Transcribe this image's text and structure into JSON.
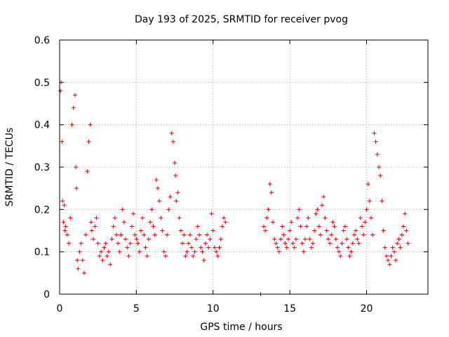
{
  "chart_data": {
    "type": "scatter",
    "title": "Day 193 of 2025, SRMTID for receiver pvog",
    "xlabel": "GPS time / hours",
    "ylabel": "SRMTID / TECUs",
    "xlim": [
      0,
      24
    ],
    "ylim": [
      0,
      0.6
    ],
    "xticks": [
      0,
      5,
      10,
      15,
      20
    ],
    "xtick_labels": [
      "0",
      "5",
      "10",
      "15",
      "20"
    ],
    "yticks": [
      0,
      0.1,
      0.2,
      0.3,
      0.4,
      0.5,
      0.6
    ],
    "ytick_labels": [
      "0",
      "0.1",
      "0.2",
      "0.3",
      "0.4",
      "0.5",
      "0.6"
    ],
    "grid": true,
    "marker": "+",
    "color": "#e00000",
    "series": [
      {
        "name": "SRMTID",
        "x": [
          0.05,
          0.1,
          0.15,
          0.2,
          0.25,
          0.3,
          0.35,
          0.4,
          0.5,
          0.6,
          0.7,
          0.8,
          0.9,
          1.0,
          1.05,
          1.1,
          1.15,
          1.2,
          1.3,
          1.4,
          1.5,
          1.6,
          1.7,
          1.8,
          1.9,
          2.0,
          2.05,
          2.1,
          2.2,
          2.3,
          2.4,
          2.5,
          2.6,
          2.7,
          2.8,
          2.9,
          3.0,
          3.1,
          3.2,
          3.3,
          3.4,
          3.5,
          3.6,
          3.7,
          3.8,
          3.9,
          4.0,
          4.1,
          4.2,
          4.3,
          4.4,
          4.5,
          4.6,
          4.7,
          4.8,
          4.9,
          5.0,
          5.1,
          5.2,
          5.3,
          5.4,
          5.5,
          5.6,
          5.7,
          5.8,
          5.9,
          6.0,
          6.1,
          6.2,
          6.3,
          6.4,
          6.5,
          6.6,
          6.7,
          6.8,
          6.9,
          7.0,
          7.1,
          7.2,
          7.3,
          7.4,
          7.5,
          7.55,
          7.6,
          7.7,
          7.8,
          7.9,
          8.0,
          8.1,
          8.2,
          8.3,
          8.4,
          8.5,
          8.6,
          8.7,
          8.8,
          8.9,
          9.0,
          9.1,
          9.2,
          9.3,
          9.4,
          9.5,
          9.6,
          9.7,
          9.8,
          9.9,
          10.0,
          10.1,
          10.2,
          10.3,
          10.4,
          10.5,
          10.6,
          10.7,
          10.8,
          13.1,
          13.3,
          13.4,
          13.5,
          13.6,
          13.7,
          13.8,
          13.9,
          14.0,
          14.1,
          14.2,
          14.3,
          14.4,
          14.5,
          14.6,
          14.7,
          14.8,
          14.9,
          15.0,
          15.1,
          15.2,
          15.3,
          15.4,
          15.5,
          15.6,
          15.7,
          15.8,
          15.9,
          16.0,
          16.1,
          16.2,
          16.3,
          16.4,
          16.5,
          16.6,
          16.7,
          16.8,
          16.9,
          17.0,
          17.1,
          17.2,
          17.3,
          17.4,
          17.5,
          17.6,
          17.7,
          17.8,
          17.9,
          18.0,
          18.1,
          18.2,
          18.3,
          18.4,
          18.5,
          18.6,
          18.7,
          18.8,
          18.9,
          19.0,
          19.1,
          19.2,
          19.3,
          19.4,
          19.5,
          19.6,
          19.7,
          19.8,
          19.9,
          20.0,
          20.1,
          20.2,
          20.3,
          20.4,
          20.5,
          20.6,
          20.7,
          20.8,
          20.9,
          21.0,
          21.1,
          21.2,
          21.3,
          21.4,
          21.5,
          21.6,
          21.7,
          21.8,
          21.9,
          22.0,
          22.1,
          22.2,
          22.3,
          22.4,
          22.5,
          22.6,
          22.7
        ],
        "y": [
          0.48,
          0.5,
          0.36,
          0.22,
          0.17,
          0.21,
          0.15,
          0.16,
          0.14,
          0.12,
          0.18,
          0.4,
          0.44,
          0.47,
          0.3,
          0.25,
          0.08,
          0.06,
          0.1,
          0.12,
          0.08,
          0.05,
          0.14,
          0.29,
          0.36,
          0.4,
          0.17,
          0.15,
          0.13,
          0.16,
          0.18,
          0.12,
          0.09,
          0.1,
          0.08,
          0.11,
          0.12,
          0.09,
          0.1,
          0.07,
          0.13,
          0.16,
          0.18,
          0.14,
          0.12,
          0.1,
          0.14,
          0.2,
          0.17,
          0.13,
          0.11,
          0.09,
          0.12,
          0.16,
          0.19,
          0.14,
          0.13,
          0.12,
          0.1,
          0.15,
          0.18,
          0.14,
          0.11,
          0.09,
          0.13,
          0.17,
          0.2,
          0.16,
          0.14,
          0.27,
          0.25,
          0.22,
          0.18,
          0.15,
          0.1,
          0.09,
          0.14,
          0.2,
          0.23,
          0.38,
          0.36,
          0.31,
          0.28,
          0.22,
          0.24,
          0.18,
          0.15,
          0.12,
          0.14,
          0.09,
          0.1,
          0.12,
          0.14,
          0.11,
          0.09,
          0.1,
          0.13,
          0.16,
          0.14,
          0.11,
          0.1,
          0.08,
          0.12,
          0.14,
          0.11,
          0.13,
          0.19,
          0.15,
          0.11,
          0.1,
          0.09,
          0.11,
          0.13,
          0.16,
          0.18,
          0.17,
          0.0,
          0.16,
          0.15,
          0.18,
          0.2,
          0.26,
          0.24,
          0.17,
          0.13,
          0.12,
          0.11,
          0.1,
          0.13,
          0.16,
          0.14,
          0.12,
          0.11,
          0.13,
          0.15,
          0.17,
          0.12,
          0.11,
          0.13,
          0.18,
          0.2,
          0.16,
          0.12,
          0.1,
          0.13,
          0.16,
          0.18,
          0.13,
          0.11,
          0.12,
          0.15,
          0.19,
          0.2,
          0.16,
          0.14,
          0.21,
          0.23,
          0.18,
          0.15,
          0.13,
          0.12,
          0.14,
          0.17,
          0.16,
          0.13,
          0.11,
          0.1,
          0.09,
          0.12,
          0.15,
          0.16,
          0.13,
          0.11,
          0.09,
          0.1,
          0.12,
          0.14,
          0.15,
          0.13,
          0.12,
          0.18,
          0.16,
          0.14,
          0.17,
          0.2,
          0.26,
          0.22,
          0.18,
          0.14,
          0.38,
          0.36,
          0.33,
          0.3,
          0.28,
          0.22,
          0.15,
          0.11,
          0.09,
          0.08,
          0.07,
          0.09,
          0.11,
          0.1,
          0.08,
          0.12,
          0.13,
          0.11,
          0.14,
          0.16,
          0.19,
          0.15,
          0.12
        ]
      }
    ]
  }
}
